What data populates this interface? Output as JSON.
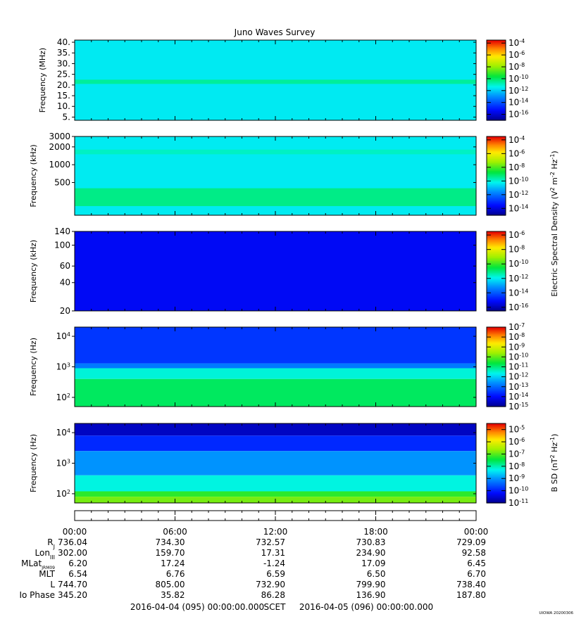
{
  "title": "Juno Waves Survey",
  "footer": {
    "start": "2016-04-04 (095) 00:00:00.000",
    "scet": "SCET",
    "end": "2016-04-05 (096) 00:00:00.000",
    "stamp": "UIOWA 20200306"
  },
  "time_ticks": [
    "00:00",
    "06:00",
    "12:00",
    "18:00",
    "00:00"
  ],
  "ephemeris": [
    {
      "label": "R",
      "sub": "J",
      "values": [
        "736.04",
        "734.30",
        "732.57",
        "730.83",
        "729.09"
      ]
    },
    {
      "label": "Lon",
      "sub": "III",
      "values": [
        "302.00",
        "159.70",
        "17.31",
        "234.90",
        "92.58"
      ]
    },
    {
      "label": "MLat",
      "sub": "JRM09",
      "values": [
        "6.20",
        "17.24",
        "-1.24",
        "17.09",
        "6.45"
      ]
    },
    {
      "label": "MLT",
      "sub": "",
      "values": [
        "6.54",
        "6.76",
        "6.59",
        "6.50",
        "6.70"
      ]
    },
    {
      "label": "L",
      "sub": "",
      "values": [
        "744.70",
        "805.00",
        "732.90",
        "799.90",
        "738.40"
      ]
    },
    {
      "label": "Io Phase",
      "sub": "",
      "values": [
        "345.20",
        "35.82",
        "86.28",
        "136.90",
        "187.80"
      ]
    }
  ],
  "colorbar_labels": {
    "e_field": [
      "Electric Spectral Density (V",
      "2",
      " m",
      "-2",
      " Hz",
      "-1",
      ")"
    ],
    "b_field": [
      "B SD (nT",
      "2",
      " Hz",
      "-1",
      ")"
    ]
  },
  "chart_data": [
    {
      "type": "heatmap",
      "title": "Juno Waves Survey",
      "ylabel": "Frequency (MHz)",
      "yscale": "linear",
      "ylim": [
        3.5,
        41
      ],
      "yticks": [
        "40.",
        "35.",
        "30.",
        "25.",
        "20.",
        "15.",
        "10.",
        "5."
      ],
      "ytick_values": [
        40,
        35,
        30,
        25,
        20,
        15,
        10,
        5
      ],
      "colorbar": {
        "exponents": [
          -4,
          -6,
          -8,
          -10,
          -12,
          -14,
          -16
        ],
        "range": [
          -17,
          -3.5
        ]
      },
      "bands": [
        {
          "frequency": [
            3.5,
            41
          ],
          "log10_density": -11.5
        },
        {
          "frequency": [
            20.5,
            22.5
          ],
          "log10_density": -10.5
        }
      ]
    },
    {
      "type": "heatmap",
      "ylabel": "Frequency (kHz)",
      "yscale": "log",
      "ylim": [
        140,
        3000
      ],
      "yticks": [
        "3000",
        "2000",
        "1000",
        "500"
      ],
      "ytick_values": [
        3000,
        2000,
        1000,
        500
      ],
      "colorbar": {
        "exponents": [
          -4,
          -6,
          -8,
          -10,
          -12,
          -14
        ],
        "range": [
          -15,
          -3.5
        ]
      },
      "bands": [
        {
          "frequency": [
            140,
            3000
          ],
          "log10_density": -10.3
        },
        {
          "frequency": [
            1500,
            1800
          ],
          "log10_density": -9.8
        },
        {
          "frequency": [
            200,
            400
          ],
          "log10_density": -9.3
        }
      ]
    },
    {
      "type": "heatmap",
      "ylabel": "Frequency (kHz)",
      "yscale": "log",
      "ylim": [
        20,
        140
      ],
      "yticks": [
        "140",
        "100",
        "60",
        "40",
        "20"
      ],
      "ytick_values": [
        140,
        100,
        60,
        40,
        20
      ],
      "colorbar": {
        "exponents": [
          -6,
          -8,
          -10,
          -12,
          -14,
          -16
        ],
        "range": [
          -16.5,
          -5.5
        ]
      },
      "bands": [
        {
          "frequency": [
            20,
            140
          ],
          "log10_density": -15.2
        }
      ]
    },
    {
      "type": "heatmap",
      "ylabel": "Frequency (Hz)",
      "yscale": "log",
      "ylim": [
        50,
        20000
      ],
      "yticks": [
        "10^4",
        "10^3",
        "10^2"
      ],
      "ytick_values": [
        10000,
        1000,
        100
      ],
      "colorbar": {
        "exponents": [
          -7,
          -8,
          -9,
          -10,
          -11,
          -12,
          -13,
          -14,
          -15
        ],
        "range": [
          -15,
          -7
        ]
      },
      "bands": [
        {
          "frequency": [
            1300,
            20000
          ],
          "log10_density": -13.5
        },
        {
          "frequency": [
            900,
            1300
          ],
          "log10_density": -12.8
        },
        {
          "frequency": [
            400,
            900
          ],
          "log10_density": -11.5
        },
        {
          "frequency": [
            50,
            400
          ],
          "log10_density": -10.8
        }
      ]
    },
    {
      "type": "heatmap",
      "ylabel": "Frequency (Hz)",
      "yscale": "log",
      "ylim": [
        50,
        20000
      ],
      "yticks": [
        "10^4",
        "10^3",
        "10^2"
      ],
      "ytick_values": [
        10000,
        1000,
        100
      ],
      "colorbar": {
        "exponents": [
          -5,
          -6,
          -7,
          -8,
          -9,
          -10,
          -11
        ],
        "range": [
          -11,
          -4.5
        ]
      },
      "bands": [
        {
          "frequency": [
            8000,
            20000
          ],
          "log10_density": -10.6
        },
        {
          "frequency": [
            2500,
            8000
          ],
          "log10_density": -9.9
        },
        {
          "frequency": [
            400,
            2500
          ],
          "log10_density": -9.0
        },
        {
          "frequency": [
            120,
            400
          ],
          "log10_density": -8.2
        },
        {
          "frequency": [
            80,
            120
          ],
          "log10_density": -7.2
        },
        {
          "frequency": [
            50,
            80
          ],
          "log10_density": -6.8
        }
      ]
    }
  ]
}
